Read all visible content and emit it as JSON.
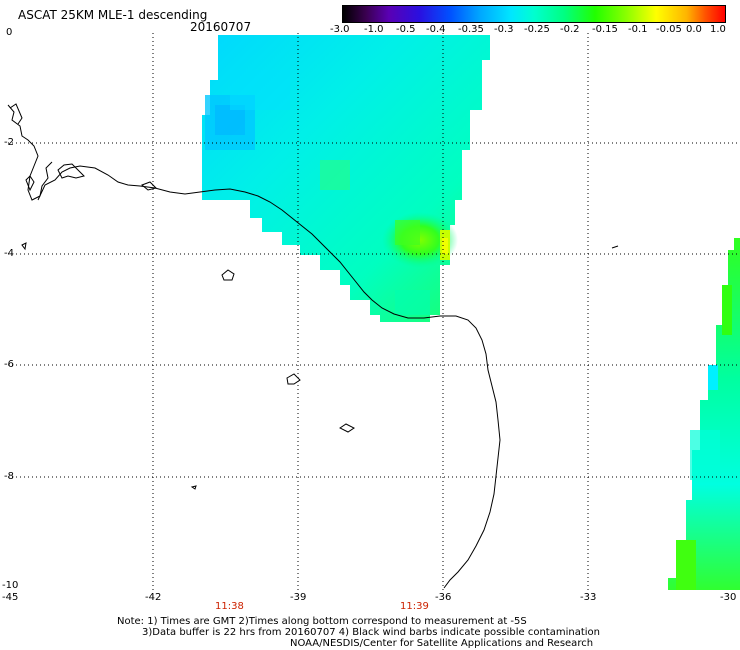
{
  "header": {
    "title": "ASCAT 25KM MLE-1 descending",
    "date": "20160707"
  },
  "colorbar": {
    "ticks": [
      "-3.0",
      "-1.0",
      "-0.5",
      "-0.4",
      "-0.35",
      "-0.3",
      "-0.25",
      "-0.2",
      "-0.15",
      "-0.1",
      "-0.05",
      "0.0",
      "1.0"
    ]
  },
  "axes": {
    "y_labels": [
      "0",
      "-2",
      "-4",
      "-6",
      "-8",
      "-10"
    ],
    "x_labels": [
      "-45",
      "-42",
      "-39",
      "-36",
      "-33",
      "-30"
    ],
    "time_labels": [
      "11:38",
      "11:39"
    ]
  },
  "notes": {
    "line1": "Note: 1) Times are GMT 2)Times along bottom correspond to measurement at -5S",
    "line2": "3)Data buffer is 22 hrs from 20160707 4) Black wind barbs indicate possible contamination",
    "line3": "NOAA/NESDIS/Center for Satellite Applications and Research"
  },
  "colors": {
    "coast": "#000000",
    "grid": "#000000",
    "time_label": "#cc2200"
  }
}
